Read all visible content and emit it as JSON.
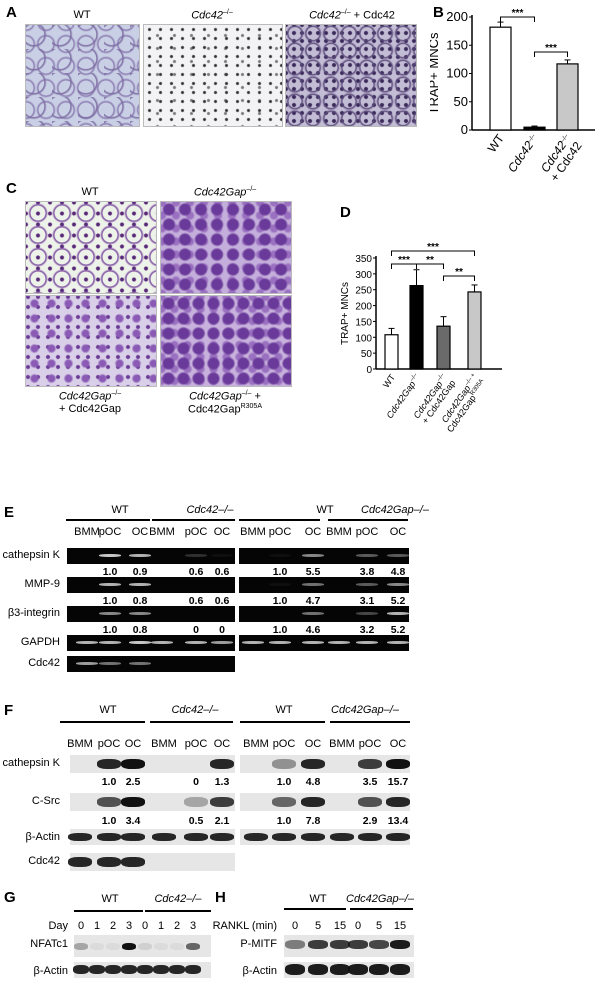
{
  "panels": {
    "A": {
      "label": "A",
      "titles": [
        {
          "text": "WT"
        },
        {
          "geno": "Cdc42",
          "sup": "–/–"
        },
        {
          "geno": "Cdc42",
          "sup": "–/–",
          "suffix": " + Cdc42"
        }
      ]
    },
    "B": {
      "label": "B"
    },
    "C": {
      "label": "C",
      "top_titles": [
        {
          "text": "WT"
        },
        {
          "geno": "Cdc42Gap",
          "sup": "–/–"
        }
      ],
      "bottom_titles": [
        {
          "geno": "Cdc42Gap",
          "sup": "–/–",
          "line2": "+ Cdc42Gap"
        },
        {
          "geno": "Cdc42Gap",
          "sup": "–/–",
          "suffix": " +",
          "line2": "Cdc42Gap",
          "line2_sup": "R305A"
        }
      ]
    },
    "D": {
      "label": "D"
    },
    "E": {
      "label": "E",
      "groups": [
        {
          "geno": "WT",
          "italic": false
        },
        {
          "geno": "Cdc42–/–",
          "italic": true
        },
        {
          "geno": "WT",
          "italic": false
        },
        {
          "geno": "Cdc42Gap–/–",
          "italic": true
        }
      ],
      "lanes": [
        "BMM",
        "pOC",
        "OC",
        "BMM",
        "pOC",
        "OC",
        "BMM",
        "pOC",
        "OC",
        "BMM",
        "pOC",
        "OC"
      ],
      "rows": [
        "cathepsin K",
        "MMP-9",
        "β3-integrin",
        "GAPDH",
        "Cdc42"
      ],
      "quant": {
        "cathepsin K": [
          "1.0",
          "0.9",
          "0.6",
          "0.6",
          "1.0",
          "5.5",
          "3.8",
          "4.8"
        ],
        "MMP-9": [
          "1.0",
          "0.8",
          "0.6",
          "0.6",
          "1.0",
          "4.7",
          "3.1",
          "5.2"
        ],
        "β3-integrin": [
          "1.0",
          "0.8",
          "0",
          "0",
          "1.0",
          "4.6",
          "3.2",
          "5.2"
        ]
      }
    },
    "F": {
      "label": "F",
      "groups": [
        {
          "geno": "WT",
          "italic": false
        },
        {
          "geno": "Cdc42–/–",
          "italic": true
        },
        {
          "geno": "WT",
          "italic": false
        },
        {
          "geno": "Cdc42Gap–/–",
          "italic": true
        }
      ],
      "lanes": [
        "BMM",
        "pOC",
        "OC",
        "BMM",
        "pOC",
        "OC",
        "BMM",
        "pOC",
        "OC",
        "BMM",
        "pOC",
        "OC"
      ],
      "rows": [
        "cathepsin K",
        "C-Src",
        "β-Actin",
        "Cdc42"
      ],
      "quant": {
        "cathepsin K": [
          "1.0",
          "2.5",
          "0",
          "1.3",
          "1.0",
          "4.8",
          "3.5",
          "15.7"
        ],
        "C-Src": [
          "1.0",
          "3.4",
          "0.5",
          "2.1",
          "1.0",
          "7.8",
          "2.9",
          "13.4"
        ]
      }
    },
    "G": {
      "label": "G",
      "groups": [
        {
          "geno": "WT",
          "italic": false
        },
        {
          "geno": "Cdc42–/–",
          "italic": true
        }
      ],
      "row_header": "Day",
      "lanes": [
        "0",
        "1",
        "2",
        "3",
        "0",
        "1",
        "2",
        "3"
      ],
      "rows": [
        "NFATc1",
        "β-Actin"
      ]
    },
    "H": {
      "label": "H",
      "groups": [
        {
          "geno": "WT",
          "italic": false
        },
        {
          "geno": "Cdc42Gap–/–",
          "italic": true
        }
      ],
      "row_header": "RANKL (min)",
      "lanes": [
        "0",
        "5",
        "15",
        "0",
        "5",
        "15"
      ],
      "rows": [
        "P-MITF",
        "β-Actin"
      ]
    }
  },
  "chart_data": [
    {
      "type": "bar",
      "panel": "B",
      "ylabel": "TRAP+ MNCs",
      "ylim": [
        0,
        200
      ],
      "yticks": [
        "0",
        "50",
        "100",
        "150",
        "200"
      ],
      "categories": [
        {
          "text": "WT"
        },
        {
          "geno": "Cdc42",
          "sup": "–/–"
        },
        {
          "geno": "Cdc42",
          "sup": "–/–",
          "line2": "+ Cdc42"
        }
      ],
      "values": [
        182,
        5,
        117
      ],
      "errors": [
        9,
        2,
        7
      ],
      "colors": [
        "#ffffff",
        "#000000",
        "#c8c8c8"
      ],
      "significance": [
        {
          "pair": [
            0,
            1
          ],
          "label": "***"
        },
        {
          "pair": [
            1,
            2
          ],
          "label": "***"
        }
      ]
    },
    {
      "type": "bar",
      "panel": "D",
      "ylabel": "TRAP+ MNCs",
      "ylim": [
        0,
        350
      ],
      "yticks": [
        "0",
        "50",
        "100",
        "150",
        "200",
        "250",
        "300",
        "350"
      ],
      "categories": [
        {
          "text": "WT"
        },
        {
          "geno": "Cdc42Gap",
          "sup": "–/–"
        },
        {
          "geno": "Cdc42Gap",
          "sup": "–/–",
          "line2": "+ Cdc42Gap"
        },
        {
          "geno": "Cdc42Gap",
          "sup": "–/– +",
          "line2": "Cdc42Gap",
          "line2_sup": "R305A"
        }
      ],
      "values": [
        108,
        263,
        135,
        243
      ],
      "errors": [
        20,
        50,
        30,
        22
      ],
      "colors": [
        "#ffffff",
        "#000000",
        "#6a6a6a",
        "#c8c8c8"
      ],
      "significance": [
        {
          "pair": [
            0,
            1
          ],
          "label": "***"
        },
        {
          "pair": [
            1,
            2
          ],
          "label": "**"
        },
        {
          "pair": [
            0,
            3
          ],
          "label": "***"
        },
        {
          "pair": [
            2,
            3
          ],
          "label": "**"
        }
      ]
    }
  ]
}
